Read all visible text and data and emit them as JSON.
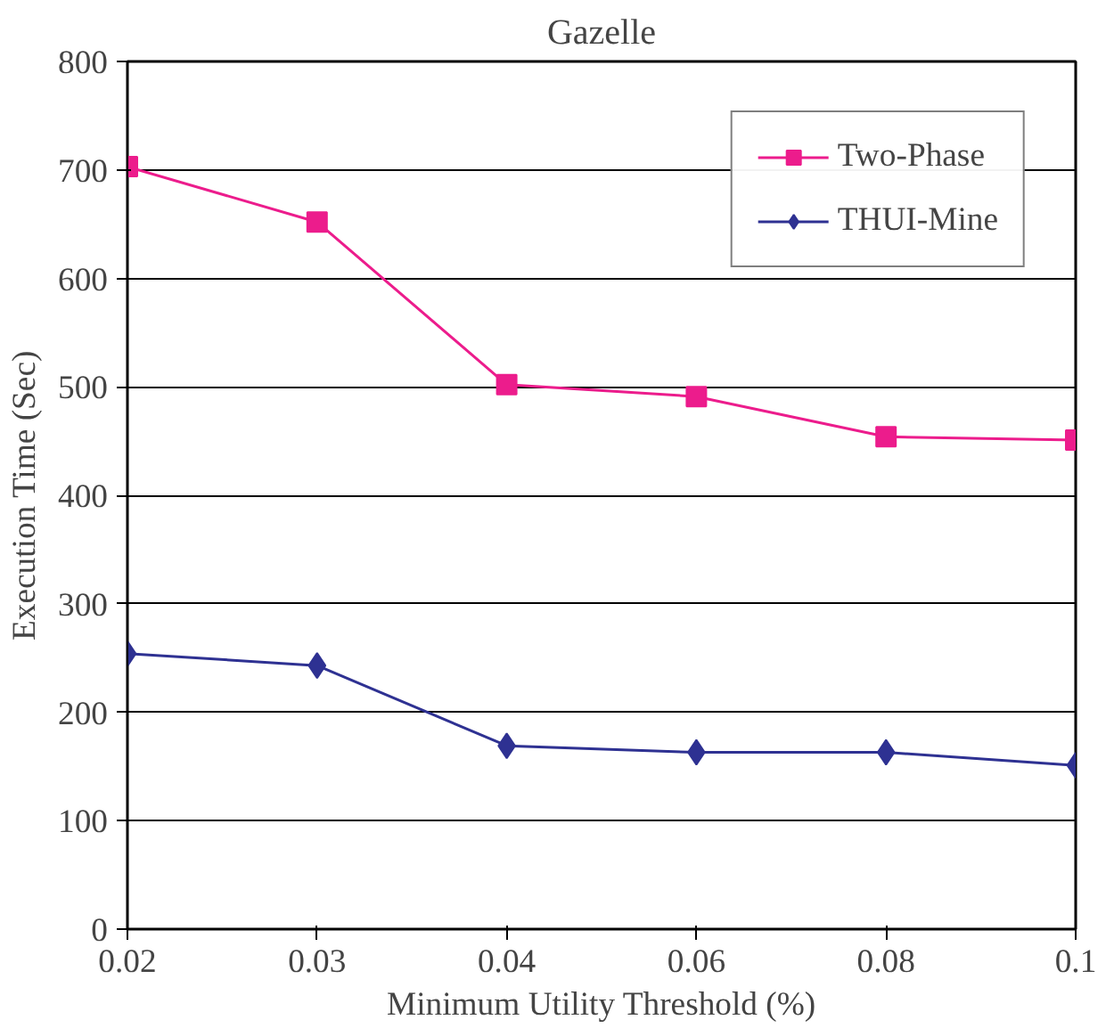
{
  "chart_data": {
    "type": "line",
    "title": "Gazelle",
    "xlabel": "Minimum Utility Threshold (%)",
    "ylabel": "Execution Time (Sec)",
    "categories": [
      "0.02",
      "0.03",
      "0.04",
      "0.06",
      "0.08",
      "0.1"
    ],
    "series": [
      {
        "name": "Two-Phase",
        "color": "#ec1c8c",
        "marker": "square",
        "values": [
          703,
          652,
          502,
          491,
          454,
          451
        ]
      },
      {
        "name": "THUI-Mine",
        "color": "#2e3192",
        "marker": "diamond",
        "values": [
          254,
          243,
          169,
          163,
          163,
          151
        ]
      }
    ],
    "ylim": [
      0,
      800
    ],
    "yticks": [
      0,
      100,
      200,
      300,
      400,
      500,
      600,
      700,
      800
    ],
    "grid": "y",
    "legend": "top right"
  }
}
